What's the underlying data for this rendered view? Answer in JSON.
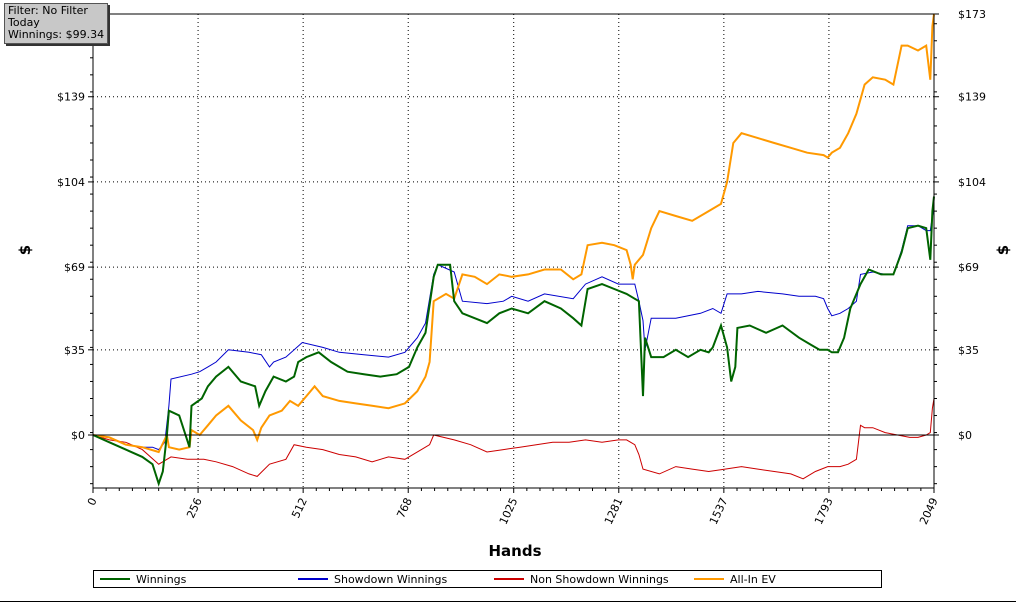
{
  "info_box": {
    "filter": "Filter: No Filter",
    "period": "Today",
    "winnings": "Winnings: $99.34"
  },
  "chart_data": {
    "type": "line",
    "xlabel": "Hands",
    "ylabel_left": "$",
    "ylabel_right": "$",
    "xlim": [
      0,
      2049
    ],
    "ylim": [
      -20,
      173
    ],
    "x_ticks": [
      0,
      256,
      512,
      768,
      1025,
      1281,
      1537,
      1793,
      2049
    ],
    "x_tick_labels": [
      "0",
      "256",
      "512",
      "768",
      "1025",
      "1281",
      "1537",
      "1793",
      "2049"
    ],
    "y_ticks": [
      0,
      35,
      69,
      104,
      139,
      173
    ],
    "y_tick_labels": [
      "$0",
      "$35",
      "$69",
      "$104",
      "$139",
      "$173"
    ],
    "grid": true,
    "legend_position": "bottom",
    "series": [
      {
        "name": "Winnings",
        "color": "#006400",
        "points": [
          [
            0,
            0
          ],
          [
            40,
            -3
          ],
          [
            80,
            -6
          ],
          [
            120,
            -9
          ],
          [
            145,
            -12
          ],
          [
            160,
            -20
          ],
          [
            170,
            -15
          ],
          [
            180,
            0
          ],
          [
            185,
            10
          ],
          [
            210,
            8
          ],
          [
            235,
            -5
          ],
          [
            240,
            12
          ],
          [
            265,
            15
          ],
          [
            280,
            20
          ],
          [
            300,
            24
          ],
          [
            330,
            28
          ],
          [
            360,
            22
          ],
          [
            395,
            20
          ],
          [
            405,
            12
          ],
          [
            420,
            18
          ],
          [
            440,
            24
          ],
          [
            470,
            22
          ],
          [
            490,
            24
          ],
          [
            500,
            30
          ],
          [
            520,
            32
          ],
          [
            550,
            34
          ],
          [
            580,
            30
          ],
          [
            600,
            28
          ],
          [
            620,
            26
          ],
          [
            660,
            25
          ],
          [
            700,
            24
          ],
          [
            740,
            25
          ],
          [
            770,
            28
          ],
          [
            790,
            36
          ],
          [
            810,
            42
          ],
          [
            830,
            65
          ],
          [
            840,
            70
          ],
          [
            870,
            70
          ],
          [
            880,
            55
          ],
          [
            900,
            50
          ],
          [
            930,
            48
          ],
          [
            960,
            46
          ],
          [
            990,
            50
          ],
          [
            1020,
            52
          ],
          [
            1060,
            50
          ],
          [
            1100,
            55
          ],
          [
            1140,
            52
          ],
          [
            1170,
            48
          ],
          [
            1190,
            45
          ],
          [
            1205,
            60
          ],
          [
            1240,
            62
          ],
          [
            1270,
            60
          ],
          [
            1300,
            58
          ],
          [
            1330,
            55
          ],
          [
            1340,
            16
          ],
          [
            1345,
            40
          ],
          [
            1360,
            32
          ],
          [
            1390,
            32
          ],
          [
            1420,
            35
          ],
          [
            1450,
            32
          ],
          [
            1480,
            35
          ],
          [
            1500,
            34
          ],
          [
            1510,
            36
          ],
          [
            1530,
            45
          ],
          [
            1545,
            36
          ],
          [
            1555,
            22
          ],
          [
            1565,
            28
          ],
          [
            1570,
            44
          ],
          [
            1600,
            45
          ],
          [
            1640,
            42
          ],
          [
            1680,
            45
          ],
          [
            1720,
            40
          ],
          [
            1750,
            37
          ],
          [
            1770,
            35
          ],
          [
            1790,
            35
          ],
          [
            1800,
            34
          ],
          [
            1815,
            34
          ],
          [
            1830,
            40
          ],
          [
            1845,
            52
          ],
          [
            1870,
            62
          ],
          [
            1890,
            68
          ],
          [
            1920,
            66
          ],
          [
            1950,
            66
          ],
          [
            1970,
            75
          ],
          [
            1985,
            85
          ],
          [
            2010,
            86
          ],
          [
            2030,
            85
          ],
          [
            2040,
            72
          ],
          [
            2045,
            92
          ],
          [
            2049,
            98
          ]
        ]
      },
      {
        "name": "Showdown Winnings",
        "color": "#0000cc",
        "points": [
          [
            0,
            0
          ],
          [
            40,
            -1
          ],
          [
            80,
            -4
          ],
          [
            120,
            -5
          ],
          [
            145,
            -5
          ],
          [
            160,
            -6
          ],
          [
            175,
            -3
          ],
          [
            185,
            12
          ],
          [
            190,
            23
          ],
          [
            240,
            25
          ],
          [
            260,
            26
          ],
          [
            280,
            28
          ],
          [
            300,
            30
          ],
          [
            330,
            35
          ],
          [
            380,
            34
          ],
          [
            410,
            33
          ],
          [
            430,
            28
          ],
          [
            440,
            30
          ],
          [
            470,
            32
          ],
          [
            510,
            38
          ],
          [
            560,
            36
          ],
          [
            600,
            34
          ],
          [
            660,
            33
          ],
          [
            720,
            32
          ],
          [
            760,
            34
          ],
          [
            790,
            40
          ],
          [
            810,
            46
          ],
          [
            830,
            66
          ],
          [
            840,
            70
          ],
          [
            880,
            67
          ],
          [
            900,
            55
          ],
          [
            960,
            54
          ],
          [
            1000,
            55
          ],
          [
            1020,
            57
          ],
          [
            1060,
            55
          ],
          [
            1100,
            58
          ],
          [
            1170,
            56
          ],
          [
            1200,
            62
          ],
          [
            1240,
            65
          ],
          [
            1280,
            62
          ],
          [
            1320,
            62
          ],
          [
            1330,
            55
          ],
          [
            1340,
            47
          ],
          [
            1345,
            35
          ],
          [
            1360,
            48
          ],
          [
            1420,
            48
          ],
          [
            1480,
            50
          ],
          [
            1510,
            52
          ],
          [
            1530,
            50
          ],
          [
            1545,
            58
          ],
          [
            1580,
            58
          ],
          [
            1620,
            59
          ],
          [
            1680,
            58
          ],
          [
            1720,
            57
          ],
          [
            1760,
            57
          ],
          [
            1780,
            56
          ],
          [
            1790,
            52
          ],
          [
            1800,
            49
          ],
          [
            1820,
            50
          ],
          [
            1840,
            52
          ],
          [
            1860,
            55
          ],
          [
            1870,
            66
          ],
          [
            1900,
            67
          ],
          [
            1930,
            66
          ],
          [
            1950,
            66
          ],
          [
            1970,
            76
          ],
          [
            1985,
            86
          ],
          [
            2010,
            86
          ],
          [
            2030,
            84
          ],
          [
            2040,
            84
          ],
          [
            2045,
            90
          ],
          [
            2049,
            93
          ]
        ]
      },
      {
        "name": "Non Showdown Winnings",
        "color": "#cc0000",
        "points": [
          [
            0,
            0
          ],
          [
            40,
            -2
          ],
          [
            80,
            -3
          ],
          [
            120,
            -6
          ],
          [
            160,
            -12
          ],
          [
            190,
            -9
          ],
          [
            230,
            -10
          ],
          [
            270,
            -10
          ],
          [
            300,
            -11
          ],
          [
            340,
            -13
          ],
          [
            380,
            -16
          ],
          [
            400,
            -17
          ],
          [
            430,
            -12
          ],
          [
            470,
            -10
          ],
          [
            490,
            -4
          ],
          [
            520,
            -5
          ],
          [
            560,
            -6
          ],
          [
            600,
            -8
          ],
          [
            640,
            -9
          ],
          [
            680,
            -11
          ],
          [
            720,
            -9
          ],
          [
            760,
            -10
          ],
          [
            800,
            -6
          ],
          [
            820,
            -4
          ],
          [
            830,
            0
          ],
          [
            880,
            -2
          ],
          [
            920,
            -4
          ],
          [
            960,
            -7
          ],
          [
            1000,
            -6
          ],
          [
            1040,
            -5
          ],
          [
            1080,
            -4
          ],
          [
            1120,
            -3
          ],
          [
            1160,
            -3
          ],
          [
            1200,
            -2
          ],
          [
            1240,
            -3
          ],
          [
            1280,
            -2
          ],
          [
            1300,
            -2
          ],
          [
            1320,
            -4
          ],
          [
            1330,
            -8
          ],
          [
            1340,
            -14
          ],
          [
            1380,
            -16
          ],
          [
            1420,
            -13
          ],
          [
            1460,
            -14
          ],
          [
            1500,
            -15
          ],
          [
            1540,
            -14
          ],
          [
            1580,
            -13
          ],
          [
            1620,
            -14
          ],
          [
            1660,
            -15
          ],
          [
            1700,
            -16
          ],
          [
            1730,
            -18
          ],
          [
            1760,
            -15
          ],
          [
            1790,
            -13
          ],
          [
            1820,
            -13
          ],
          [
            1840,
            -12
          ],
          [
            1860,
            -10
          ],
          [
            1870,
            4
          ],
          [
            1880,
            3
          ],
          [
            1900,
            3
          ],
          [
            1930,
            1
          ],
          [
            1960,
            0
          ],
          [
            1990,
            -1
          ],
          [
            2010,
            -1
          ],
          [
            2030,
            0
          ],
          [
            2040,
            1
          ],
          [
            2045,
            11
          ],
          [
            2049,
            15
          ]
        ]
      },
      {
        "name": "All-In EV",
        "color": "#ff9900",
        "points": [
          [
            0,
            0
          ],
          [
            40,
            -1
          ],
          [
            80,
            -4
          ],
          [
            120,
            -5
          ],
          [
            160,
            -7
          ],
          [
            180,
            0
          ],
          [
            185,
            -5
          ],
          [
            210,
            -6
          ],
          [
            235,
            -5
          ],
          [
            240,
            2
          ],
          [
            260,
            0
          ],
          [
            280,
            4
          ],
          [
            300,
            8
          ],
          [
            330,
            12
          ],
          [
            360,
            6
          ],
          [
            390,
            2
          ],
          [
            400,
            -2
          ],
          [
            410,
            3
          ],
          [
            430,
            8
          ],
          [
            460,
            10
          ],
          [
            480,
            14
          ],
          [
            500,
            12
          ],
          [
            520,
            16
          ],
          [
            540,
            20
          ],
          [
            560,
            16
          ],
          [
            600,
            14
          ],
          [
            640,
            13
          ],
          [
            680,
            12
          ],
          [
            720,
            11
          ],
          [
            760,
            13
          ],
          [
            790,
            18
          ],
          [
            810,
            24
          ],
          [
            820,
            30
          ],
          [
            830,
            55
          ],
          [
            860,
            58
          ],
          [
            880,
            56
          ],
          [
            900,
            66
          ],
          [
            930,
            65
          ],
          [
            960,
            62
          ],
          [
            990,
            66
          ],
          [
            1020,
            65
          ],
          [
            1060,
            66
          ],
          [
            1100,
            68
          ],
          [
            1140,
            68
          ],
          [
            1170,
            64
          ],
          [
            1190,
            66
          ],
          [
            1205,
            78
          ],
          [
            1240,
            79
          ],
          [
            1270,
            78
          ],
          [
            1300,
            76
          ],
          [
            1310,
            70
          ],
          [
            1315,
            64
          ],
          [
            1320,
            70
          ],
          [
            1340,
            74
          ],
          [
            1360,
            85
          ],
          [
            1380,
            92
          ],
          [
            1420,
            90
          ],
          [
            1460,
            88
          ],
          [
            1500,
            92
          ],
          [
            1530,
            95
          ],
          [
            1545,
            104
          ],
          [
            1560,
            120
          ],
          [
            1580,
            124
          ],
          [
            1620,
            122
          ],
          [
            1660,
            120
          ],
          [
            1700,
            118
          ],
          [
            1740,
            116
          ],
          [
            1780,
            115
          ],
          [
            1790,
            114
          ],
          [
            1800,
            116
          ],
          [
            1820,
            118
          ],
          [
            1840,
            124
          ],
          [
            1860,
            132
          ],
          [
            1880,
            144
          ],
          [
            1900,
            147
          ],
          [
            1930,
            146
          ],
          [
            1950,
            144
          ],
          [
            1970,
            160
          ],
          [
            1985,
            160
          ],
          [
            2010,
            158
          ],
          [
            2030,
            160
          ],
          [
            2040,
            146
          ],
          [
            2045,
            168
          ],
          [
            2049,
            173
          ]
        ]
      }
    ]
  }
}
